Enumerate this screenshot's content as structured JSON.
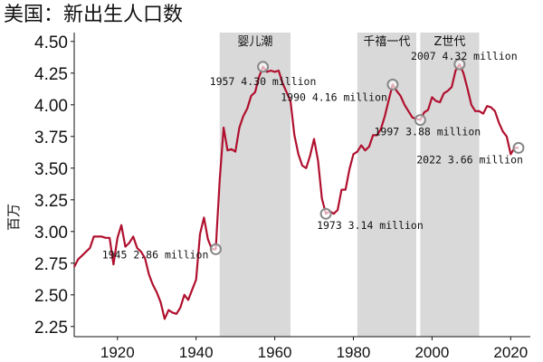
{
  "chart_data": {
    "type": "line",
    "title": "美国：新出生人口数",
    "ylabel": "百万",
    "xlabel": "",
    "xlim": [
      1909,
      2025
    ],
    "ylim": [
      2.17,
      4.57
    ],
    "x_ticks": [
      1920,
      1940,
      1960,
      1980,
      2000,
      2020
    ],
    "y_ticks": [
      "2.25",
      "2.50",
      "2.75",
      "3.00",
      "3.25",
      "3.50",
      "3.75",
      "4.00",
      "4.25",
      "4.50"
    ],
    "grid": false,
    "line_color": "#b0102e",
    "band_color": "#d9d9d9",
    "bands": [
      {
        "label": "婴儿潮",
        "start": 1946,
        "end": 1964
      },
      {
        "label": "千禧一代",
        "start": 1981,
        "end": 1996
      },
      {
        "label": "Z世代",
        "start": 1997,
        "end": 2012
      }
    ],
    "annotations": [
      {
        "year": 1945,
        "value": 2.86,
        "text": "1945 2.86 million",
        "anchor": "end",
        "dx": -8,
        "dy": 10
      },
      {
        "year": 1957,
        "value": 4.3,
        "text": "1957 4.30 million",
        "anchor": "middle",
        "dx": 0,
        "dy": 20
      },
      {
        "year": 1973,
        "value": 3.14,
        "text": "1973 3.14 million",
        "anchor": "start",
        "dx": -10,
        "dy": 17
      },
      {
        "year": 1990,
        "value": 4.16,
        "text": "1990 4.16 million",
        "anchor": "end",
        "dx": -6,
        "dy": 18
      },
      {
        "year": 1997,
        "value": 3.88,
        "text": "1997 3.88 million",
        "anchor": "middle",
        "dx": 8,
        "dy": 17
      },
      {
        "year": 2007,
        "value": 4.32,
        "text": "2007 4.32 million",
        "anchor": "middle",
        "dx": 5,
        "dy": -5
      },
      {
        "year": 2022,
        "value": 3.66,
        "text": "2022 3.66 million",
        "anchor": "end",
        "dx": 5,
        "dy": 17
      }
    ],
    "series": [
      {
        "x": [
          1909,
          1910,
          1911,
          1912,
          1913,
          1914,
          1915,
          1916,
          1917,
          1918,
          1919,
          1920,
          1921,
          1922,
          1923,
          1924,
          1925,
          1926,
          1927,
          1928,
          1929,
          1930,
          1931,
          1932,
          1933,
          1934,
          1935,
          1936,
          1937,
          1938,
          1939,
          1940,
          1941,
          1942,
          1943,
          1944,
          1945,
          1946,
          1947,
          1948,
          1949,
          1950,
          1951,
          1952,
          1953,
          1954,
          1955,
          1956,
          1957,
          1958,
          1959,
          1960,
          1961,
          1962,
          1963,
          1964,
          1965,
          1966,
          1967,
          1968,
          1969,
          1970,
          1971,
          1972,
          1973,
          1974,
          1975,
          1976,
          1977,
          1978,
          1979,
          1980,
          1981,
          1982,
          1983,
          1984,
          1985,
          1986,
          1987,
          1988,
          1989,
          1990,
          1991,
          1992,
          1993,
          1994,
          1995,
          1996,
          1997,
          1998,
          1999,
          2000,
          2001,
          2002,
          2003,
          2004,
          2005,
          2006,
          2007,
          2008,
          2009,
          2010,
          2011,
          2012,
          2013,
          2014,
          2015,
          2016,
          2017,
          2018,
          2019,
          2020,
          2021,
          2022
        ],
        "values": [
          2.72,
          2.78,
          2.81,
          2.84,
          2.87,
          2.96,
          2.96,
          2.96,
          2.95,
          2.95,
          2.74,
          2.95,
          3.05,
          2.88,
          2.91,
          2.96,
          2.87,
          2.84,
          2.79,
          2.66,
          2.58,
          2.52,
          2.44,
          2.31,
          2.38,
          2.36,
          2.35,
          2.4,
          2.5,
          2.46,
          2.54,
          2.62,
          2.98,
          3.11,
          2.94,
          2.86,
          2.86,
          3.41,
          3.82,
          3.64,
          3.65,
          3.63,
          3.82,
          3.91,
          3.97,
          4.07,
          4.1,
          4.22,
          4.3,
          4.26,
          4.27,
          4.26,
          4.27,
          4.17,
          4.1,
          4.03,
          3.76,
          3.61,
          3.52,
          3.5,
          3.6,
          3.73,
          3.56,
          3.26,
          3.14,
          3.16,
          3.14,
          3.17,
          3.33,
          3.33,
          3.49,
          3.61,
          3.63,
          3.68,
          3.64,
          3.67,
          3.76,
          3.76,
          3.81,
          3.91,
          4.04,
          4.16,
          4.11,
          4.07,
          4.0,
          3.95,
          3.9,
          3.89,
          3.88,
          3.94,
          3.96,
          4.06,
          4.03,
          4.02,
          4.09,
          4.11,
          4.14,
          4.27,
          4.32,
          4.25,
          4.13,
          4.0,
          3.95,
          3.95,
          3.93,
          3.99,
          3.98,
          3.95,
          3.86,
          3.79,
          3.75,
          3.61,
          3.66,
          3.66
        ]
      }
    ]
  }
}
